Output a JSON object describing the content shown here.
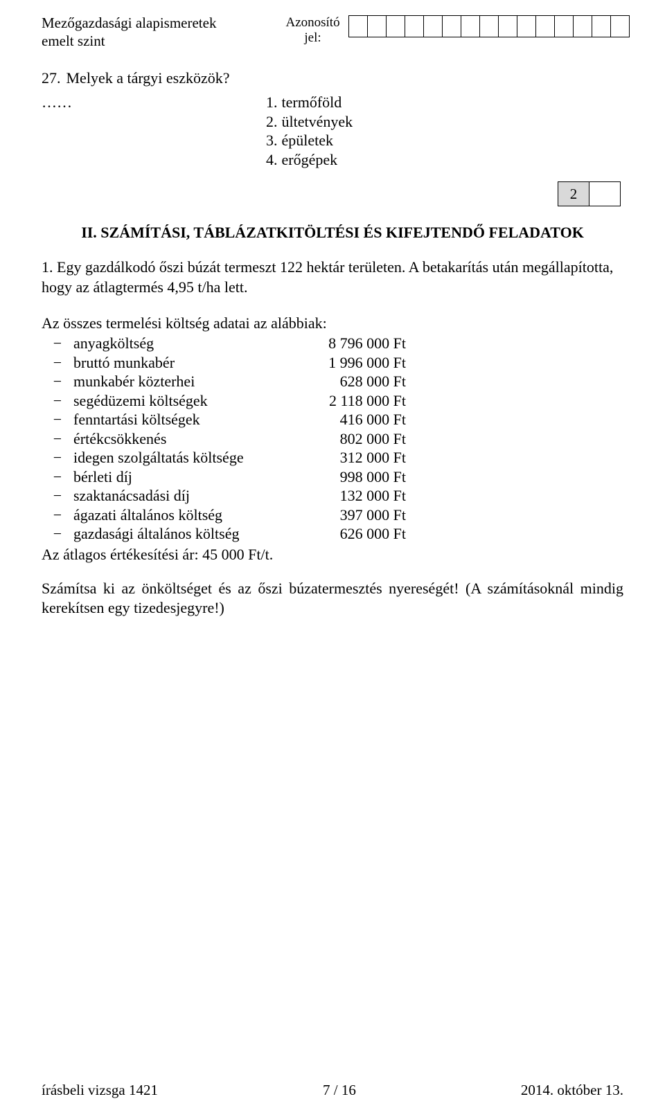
{
  "header": {
    "subject_line1": "Mezőgazdasági alapismeretek",
    "subject_line2": "emelt szint",
    "id_label_line1": "Azonosító",
    "id_label_line2": "jel:",
    "id_box_count": 15
  },
  "q27": {
    "number": "27.",
    "text": "Melyek a tárgyi eszközök?",
    "dots": "……",
    "answers": [
      {
        "n": "1.",
        "t": "termőföld"
      },
      {
        "n": "2.",
        "t": "ültetvények"
      },
      {
        "n": "3.",
        "t": "épületek"
      },
      {
        "n": "4.",
        "t": "erőgépek"
      }
    ]
  },
  "score": {
    "value": "2"
  },
  "section_title": "II. SZÁMÍTÁSI, TÁBLÁZATKITÖLTÉSI ÉS KIFEJTENDŐ FELADATOK",
  "task1": {
    "intro1": "1. Egy gazdálkodó őszi búzát termeszt 122 hektár területen. A betakarítás után megállapította,",
    "intro2": "hogy az átlagtermés 4,95 t/ha lett.",
    "cost_intro": "Az összes termelési költség adatai az alábbiak:",
    "costs": [
      {
        "label": "anyagköltség",
        "value": "8 796 000 Ft"
      },
      {
        "label": "bruttó munkabér",
        "value": "1 996 000 Ft"
      },
      {
        "label": "munkabér közterhei",
        "value": "628 000 Ft"
      },
      {
        "label": "segédüzemi költségek",
        "value": "2 118 000 Ft"
      },
      {
        "label": "fenntartási költségek",
        "value": "416 000 Ft"
      },
      {
        "label": "értékcsökkenés",
        "value": "802 000 Ft"
      },
      {
        "label": "idegen szolgáltatás költsége",
        "value": "312 000 Ft"
      },
      {
        "label": "bérleti díj",
        "value": "998 000 Ft"
      },
      {
        "label": "szaktanácsadási díj",
        "value": "132 000 Ft"
      },
      {
        "label": "ágazati általános költség",
        "value": "397 000 Ft"
      },
      {
        "label": "gazdasági általános költség",
        "value": "626 000 Ft"
      }
    ],
    "avg_price": "Az átlagos értékesítési ár: 45 000 Ft/t.",
    "task_text": "Számítsa ki az önköltséget és az őszi búzatermesztés nyereségét! (A számításoknál mindig kerekítsen egy tizedesjegyre!)"
  },
  "footer": {
    "left": "írásbeli vizsga 1421",
    "center": "7 / 16",
    "right": "2014. október 13."
  },
  "dash_char": "−"
}
